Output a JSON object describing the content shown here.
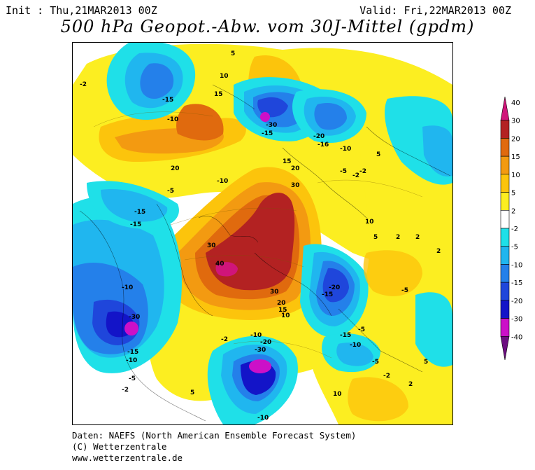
{
  "header": {
    "init": "Init : Thu,21MAR2013 00Z",
    "valid": "Valid: Fri,22MAR2013 00Z",
    "title": "500 hPa Geopot.-Abw. vom 30J-Mittel (gpdm)"
  },
  "credits": {
    "line1": "Daten: NAEFS (North American Ensemble Forecast System)",
    "line2": "(C) Wetterzentrale",
    "line3": "www.wetterzentrale.de"
  },
  "legend": {
    "bins": [
      {
        "label": "40",
        "color": "#d0157a"
      },
      {
        "label": "30",
        "color": "#b32222"
      },
      {
        "label": "20",
        "color": "#e06a0e"
      },
      {
        "label": "15",
        "color": "#f39a11"
      },
      {
        "label": "10",
        "color": "#fcc40c"
      },
      {
        "label": "5",
        "color": "#fcee21"
      },
      {
        "label": "2",
        "color": "#ffffff"
      },
      {
        "label": "-2",
        "color": "#1fe0e8"
      },
      {
        "label": "-5",
        "color": "#20b6ef"
      },
      {
        "label": "-10",
        "color": "#2480ea"
      },
      {
        "label": "-15",
        "color": "#1f46db"
      },
      {
        "label": "-20",
        "color": "#1314c8"
      },
      {
        "label": "-30",
        "color": "#cc10c8"
      },
      {
        "label": "-40",
        "color": "#6c0e80"
      }
    ]
  },
  "map_labels": [
    "-15",
    "-10",
    "-2",
    "5",
    "10",
    "15",
    "20",
    "-30",
    "-15",
    "-20",
    "-16",
    "-10",
    "-5",
    "-2",
    "15",
    "20",
    "30",
    "-10",
    "-5",
    "-15",
    "-15",
    "30",
    "40",
    "30",
    "-20",
    "-15",
    "-10",
    "-30",
    "-15",
    "-10",
    "-5",
    "20",
    "15",
    "10",
    "-2",
    "-10",
    "-30",
    "-20",
    "-15",
    "-10",
    "-5",
    "-2",
    "2",
    "5",
    "10",
    "-2",
    "5",
    "10",
    "5",
    "-2",
    "2",
    "-10",
    "-5",
    "2",
    "2",
    "5",
    "-5"
  ]
}
